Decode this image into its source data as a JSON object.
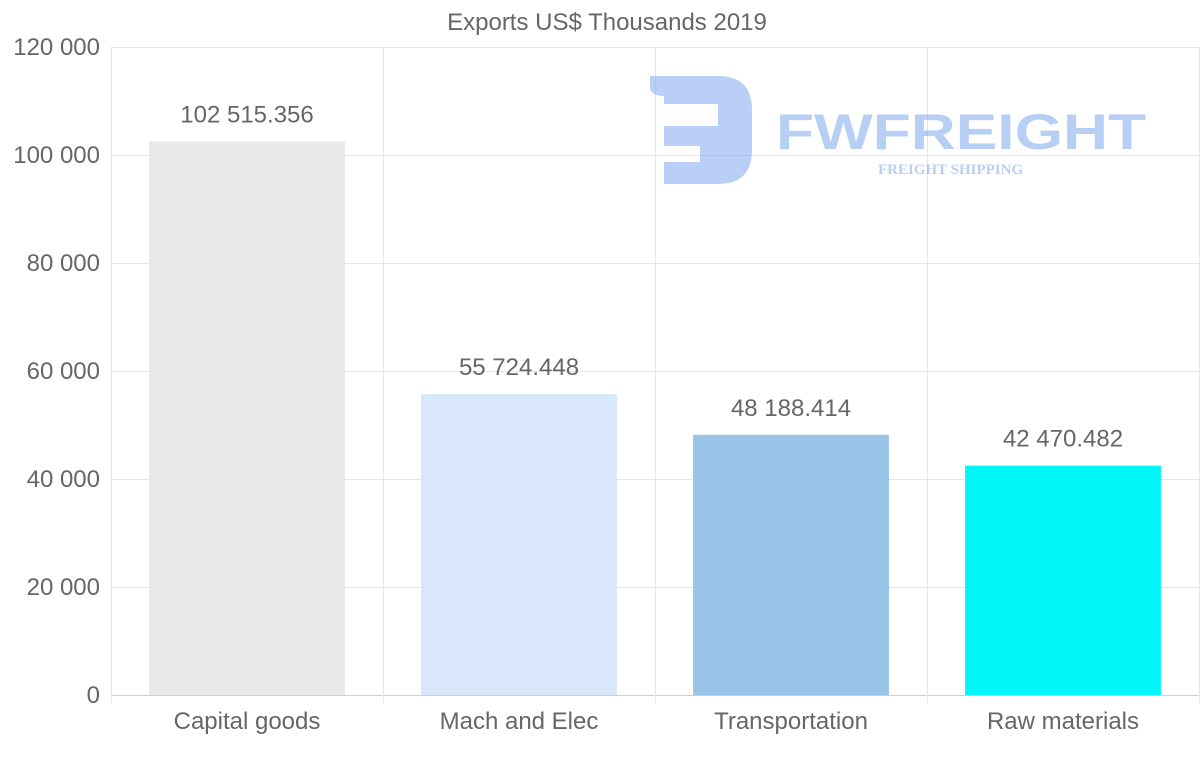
{
  "chart_data": {
    "type": "bar",
    "title": "Exports US$ Thousands 2019",
    "categories": [
      "Capital goods",
      "Mach and Elec",
      "Transportation",
      "Raw materials"
    ],
    "values": [
      102515.356,
      55724.448,
      48188.414,
      42470.482
    ],
    "value_labels": [
      "102 515.356",
      "55 724.448",
      "48 188.414",
      "42 470.482"
    ],
    "colors": [
      "#e8e8e8",
      "#d8e8fa",
      "#9ac4e8",
      "#00f6f8"
    ],
    "ylim": [
      0,
      120000
    ],
    "yticks": [
      0,
      20000,
      40000,
      60000,
      80000,
      100000,
      120000
    ],
    "ytick_labels": [
      "0",
      "20 000",
      "40 000",
      "60 000",
      "80 000",
      "100 000",
      "120 000"
    ],
    "xlabel": "",
    "ylabel": "",
    "grid": true
  },
  "watermark": {
    "brand": "FWFREIGHT",
    "tagline": "FREIGHT SHIPPING",
    "color": "#7fa8ee"
  }
}
